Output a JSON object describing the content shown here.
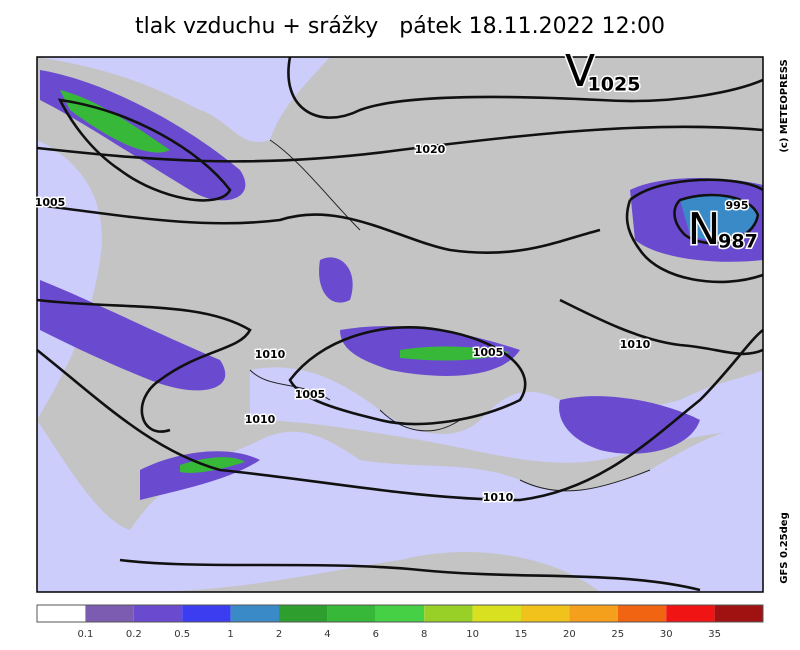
{
  "title": "tlak vzduchu + srážky   pátek 18.11.2022 12:00",
  "credit": "(c) METEOPRESS",
  "model": "GFS 0.25deg",
  "pressure_centers": [
    {
      "letter": "V",
      "value": 1025
    },
    {
      "letter": "N",
      "value": 987
    }
  ],
  "isobar_labels": [
    1020,
    1005,
    995,
    1010,
    1005,
    1010,
    1005,
    1010,
    1010
  ],
  "legend": {
    "colors": [
      "#ffffff",
      "#7b5cb0",
      "#6a4bd0",
      "#3c3cf0",
      "#3a8ac8",
      "#2e9e2e",
      "#38b838",
      "#46d046",
      "#98d028",
      "#d8e020",
      "#f2c21c",
      "#f5a01c",
      "#f06412",
      "#f01414",
      "#a01212"
    ],
    "labels": [
      0.1,
      0.2,
      0.5,
      1,
      2,
      4,
      6,
      8,
      10,
      15,
      20,
      25,
      30,
      35
    ]
  }
}
